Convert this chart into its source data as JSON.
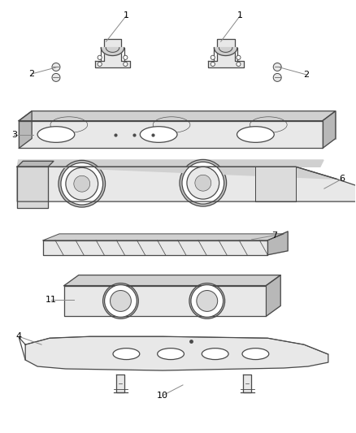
{
  "bg_color": "#ffffff",
  "line_color": "#4a4a4a",
  "fill_light": "#e8e8e8",
  "fill_mid": "#d0d0d0",
  "fill_dark": "#b8b8b8",
  "label_color": "#000000",
  "fig_width": 4.38,
  "fig_height": 5.33,
  "dpi": 100
}
